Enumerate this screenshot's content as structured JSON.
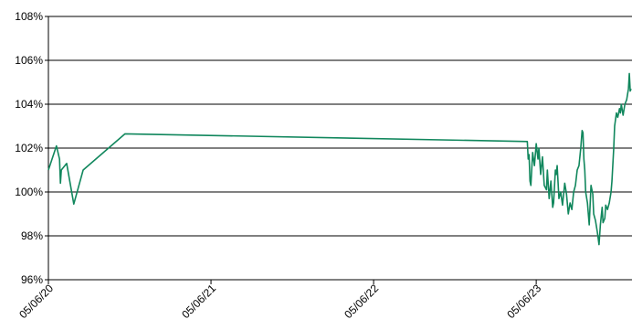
{
  "chart_data": {
    "type": "line",
    "color": "#11875d",
    "grid": true,
    "x": [
      "2020-05-06",
      "2020-05-24",
      "2020-05-31",
      "2020-06-02",
      "2020-06-04",
      "2020-06-16",
      "2020-07-02",
      "2020-07-23",
      "2020-10-25",
      "2023-04-16",
      "2023-04-18",
      "2023-04-20",
      "2023-04-22",
      "2023-04-24",
      "2023-04-28",
      "2023-05-02",
      "2023-05-06",
      "2023-05-10",
      "2023-05-12",
      "2023-05-16",
      "2023-05-20",
      "2023-05-24",
      "2023-05-29",
      "2023-05-31",
      "2023-06-04",
      "2023-06-08",
      "2023-06-12",
      "2023-06-14",
      "2023-06-18",
      "2023-06-20",
      "2023-06-22",
      "2023-06-26",
      "2023-06-30",
      "2023-07-04",
      "2023-07-09",
      "2023-07-13",
      "2023-07-17",
      "2023-07-21",
      "2023-07-25",
      "2023-07-29",
      "2023-08-02",
      "2023-08-06",
      "2023-08-10",
      "2023-08-14",
      "2023-08-17",
      "2023-08-19",
      "2023-08-21",
      "2023-08-23",
      "2023-08-25",
      "2023-08-29",
      "2023-09-02",
      "2023-09-06",
      "2023-09-10",
      "2023-09-12",
      "2023-09-16",
      "2023-09-20",
      "2023-09-22",
      "2023-09-24",
      "2023-09-27",
      "2023-10-01",
      "2023-10-03",
      "2023-10-07",
      "2023-10-09",
      "2023-10-13",
      "2023-10-17",
      "2023-10-21",
      "2023-10-23",
      "2023-10-27",
      "2023-10-29",
      "2023-11-02",
      "2023-11-05",
      "2023-11-09",
      "2023-11-11",
      "2023-11-13",
      "2023-11-17",
      "2023-11-21",
      "2023-11-25",
      "2023-11-29",
      "2023-12-01",
      "2023-12-03",
      "2023-12-05"
    ],
    "values": [
      101.0,
      102.1,
      101.5,
      100.4,
      101.0,
      101.3,
      99.45,
      101.0,
      102.65,
      102.3,
      101.5,
      101.7,
      100.5,
      100.3,
      101.8,
      101.2,
      102.2,
      101.5,
      102.0,
      100.8,
      101.6,
      100.3,
      100.1,
      101.0,
      99.7,
      100.5,
      99.3,
      99.5,
      101.0,
      100.8,
      101.2,
      99.7,
      100.0,
      99.4,
      100.4,
      99.9,
      99.0,
      99.5,
      99.2,
      100.0,
      100.3,
      101.0,
      101.2,
      102.0,
      102.8,
      102.7,
      101.5,
      101.0,
      100.0,
      99.5,
      98.5,
      100.3,
      99.9,
      99.0,
      98.7,
      98.2,
      97.9,
      97.6,
      98.5,
      99.3,
      98.6,
      98.8,
      99.4,
      99.2,
      99.5,
      100.0,
      100.5,
      102.0,
      103.0,
      103.6,
      103.4,
      103.8,
      103.6,
      104.0,
      103.5,
      104.0,
      104.2,
      104.7,
      105.4,
      104.6,
      104.7
    ],
    "xlim": [
      "2020-05-06",
      "2023-12-07"
    ],
    "xticks": [
      {
        "value": "2020-05-06",
        "label": "05/06/20"
      },
      {
        "value": "2021-05-06",
        "label": "05/06/21"
      },
      {
        "value": "2022-05-06",
        "label": "05/06/22"
      },
      {
        "value": "2023-05-06",
        "label": "05/06/23"
      }
    ],
    "ylim": [
      96,
      108
    ],
    "yticks": [
      {
        "value": 96,
        "label": "96%"
      },
      {
        "value": 98,
        "label": "98%"
      },
      {
        "value": 100,
        "label": "100%"
      },
      {
        "value": 102,
        "label": "102%"
      },
      {
        "value": 104,
        "label": "104%"
      },
      {
        "value": 106,
        "label": "106%"
      },
      {
        "value": 108,
        "label": "108%"
      }
    ]
  }
}
